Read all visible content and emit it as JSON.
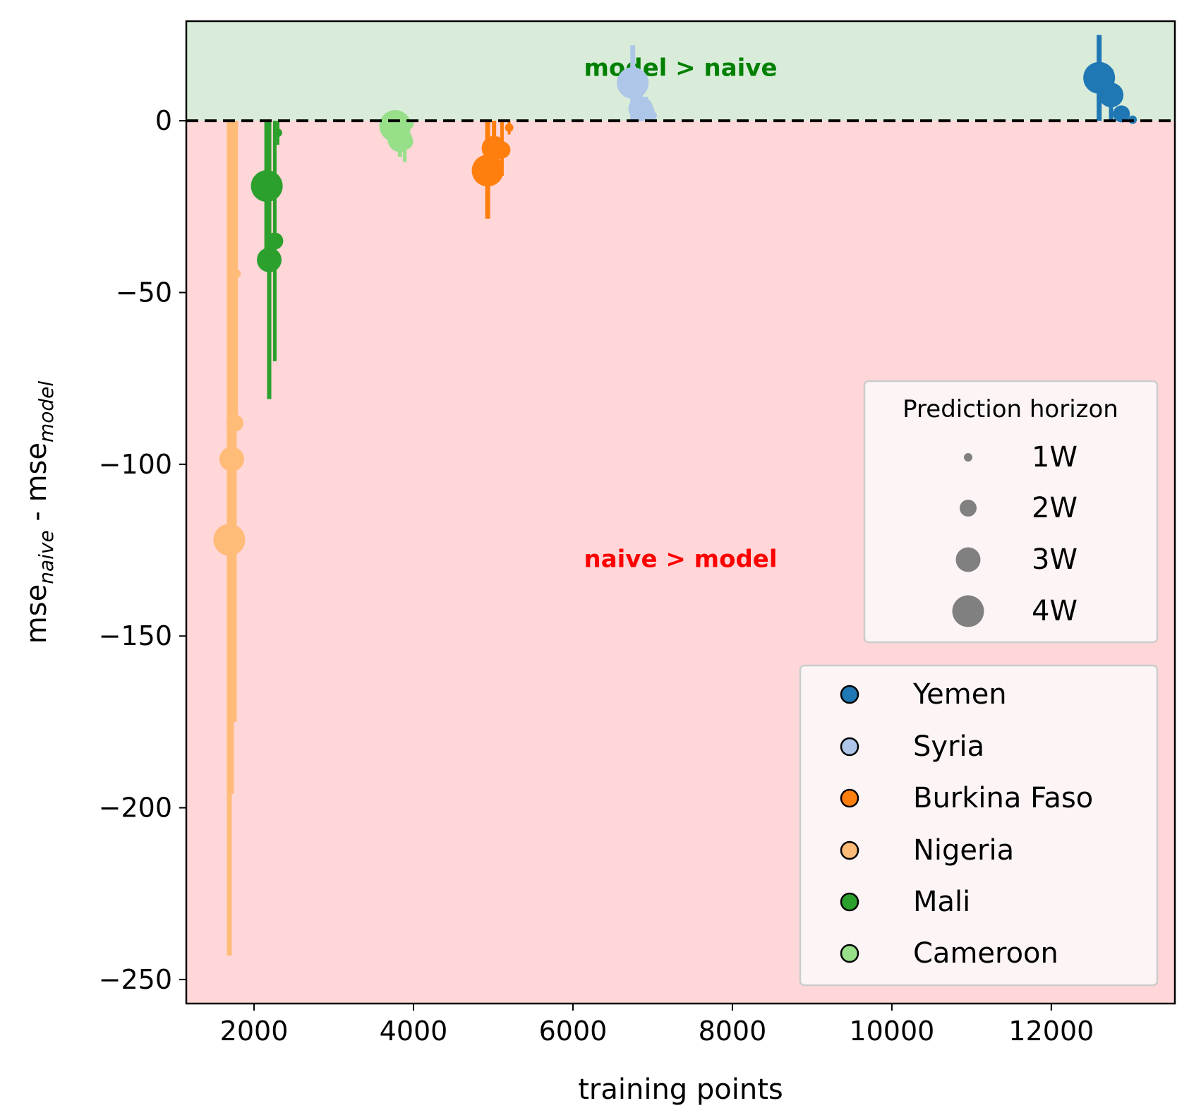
{
  "chart_data": {
    "type": "scatter",
    "xlabel": "training points",
    "ylabel_main": "mse",
    "ylabel_sub1": "naive",
    "ylabel_mid": " - mse",
    "ylabel_sub2": "model",
    "xlim": [
      1150,
      13550
    ],
    "ylim": [
      -257,
      29
    ],
    "x_ticks": [
      2000,
      4000,
      6000,
      8000,
      10000,
      12000
    ],
    "x_tick_labels": [
      "2000",
      "4000",
      "6000",
      "8000",
      "10000",
      "12000"
    ],
    "y_ticks": [
      0,
      -50,
      -100,
      -150,
      -200,
      -250
    ],
    "y_tick_labels": [
      "0",
      "−50",
      "−100",
      "−150",
      "−200",
      "−250"
    ],
    "reference_line_y": 0,
    "regions": {
      "above": {
        "label": "model > naive",
        "color": "#d9ecd9",
        "label_color": "#008000",
        "label_x": 7350,
        "label_y": 15
      },
      "below": {
        "label": "naive > model",
        "color": "#ffd7d8",
        "label_color": "#ff0000",
        "label_x": 7350,
        "label_y": -128
      }
    },
    "size_legend": {
      "title": "Prediction horizon",
      "placement": "right",
      "entries": [
        "1W",
        "2W",
        "3W",
        "4W"
      ],
      "marker_color": "#808080"
    },
    "color_legend": {
      "placement": "lower-right",
      "entries": [
        "Yemen",
        "Syria",
        "Burkina Faso",
        "Nigeria",
        "Mali",
        "Cameroon"
      ]
    },
    "series": [
      {
        "name": "Yemen",
        "color": "#1f77b4",
        "points": [
          {
            "h": 4,
            "x": 12600,
            "y": 12.5,
            "lo": 0,
            "hi": 25
          },
          {
            "h": 3,
            "x": 12750,
            "y": 7.5,
            "lo": 0,
            "hi": 15
          },
          {
            "h": 2,
            "x": 12880,
            "y": 2,
            "lo": 0,
            "hi": 4
          },
          {
            "h": 1,
            "x": 13020,
            "y": 0.3,
            "lo": -0.5,
            "hi": 1
          }
        ]
      },
      {
        "name": "Syria",
        "color": "#aec7e8",
        "points": [
          {
            "h": 4,
            "x": 6750,
            "y": 11,
            "lo": 0,
            "hi": 22
          },
          {
            "h": 3,
            "x": 6850,
            "y": 3.5,
            "lo": 0,
            "hi": 8
          },
          {
            "h": 2,
            "x": 6920,
            "y": 2.5,
            "lo": 0,
            "hi": 7
          },
          {
            "h": 1,
            "x": 7000,
            "y": 1.5,
            "lo": 0,
            "hi": 3
          }
        ]
      },
      {
        "name": "Burkina Faso",
        "color": "#ff7f0e",
        "points": [
          {
            "h": 4,
            "x": 4930,
            "y": -14.5,
            "lo": -28.5,
            "hi": 0
          },
          {
            "h": 3,
            "x": 5010,
            "y": -8,
            "lo": -16,
            "hi": 0
          },
          {
            "h": 2,
            "x": 5110,
            "y": -8.5,
            "lo": -16,
            "hi": 0
          },
          {
            "h": 1,
            "x": 5200,
            "y": -2,
            "lo": -4,
            "hi": 0
          }
        ]
      },
      {
        "name": "Nigeria",
        "color": "#ffbb78",
        "points": [
          {
            "h": 4,
            "x": 1690,
            "y": -122,
            "lo": -243,
            "hi": 0
          },
          {
            "h": 3,
            "x": 1720,
            "y": -98.5,
            "lo": -196,
            "hi": 0
          },
          {
            "h": 2,
            "x": 1760,
            "y": -88,
            "lo": -175,
            "hi": 0
          },
          {
            "h": 1,
            "x": 1780,
            "y": -44.5,
            "lo": -89,
            "hi": 0
          }
        ]
      },
      {
        "name": "Mali",
        "color": "#2ca02c",
        "points": [
          {
            "h": 4,
            "x": 2160,
            "y": -19,
            "lo": -38,
            "hi": 0
          },
          {
            "h": 3,
            "x": 2190,
            "y": -40.5,
            "lo": -81,
            "hi": 0
          },
          {
            "h": 2,
            "x": 2260,
            "y": -35,
            "lo": -70,
            "hi": 0
          },
          {
            "h": 1,
            "x": 2300,
            "y": -3.5,
            "lo": -7,
            "hi": 0
          }
        ]
      },
      {
        "name": "Cameroon",
        "color": "#98df8a",
        "points": [
          {
            "h": 4,
            "x": 3770,
            "y": -1.5,
            "lo": -3,
            "hi": 0
          },
          {
            "h": 3,
            "x": 3830,
            "y": -5.5,
            "lo": -10.5,
            "hi": 0
          },
          {
            "h": 2,
            "x": 3890,
            "y": -6,
            "lo": -12,
            "hi": 0
          },
          {
            "h": 1,
            "x": 3950,
            "y": -1,
            "lo": -2,
            "hi": 0
          }
        ]
      }
    ]
  }
}
